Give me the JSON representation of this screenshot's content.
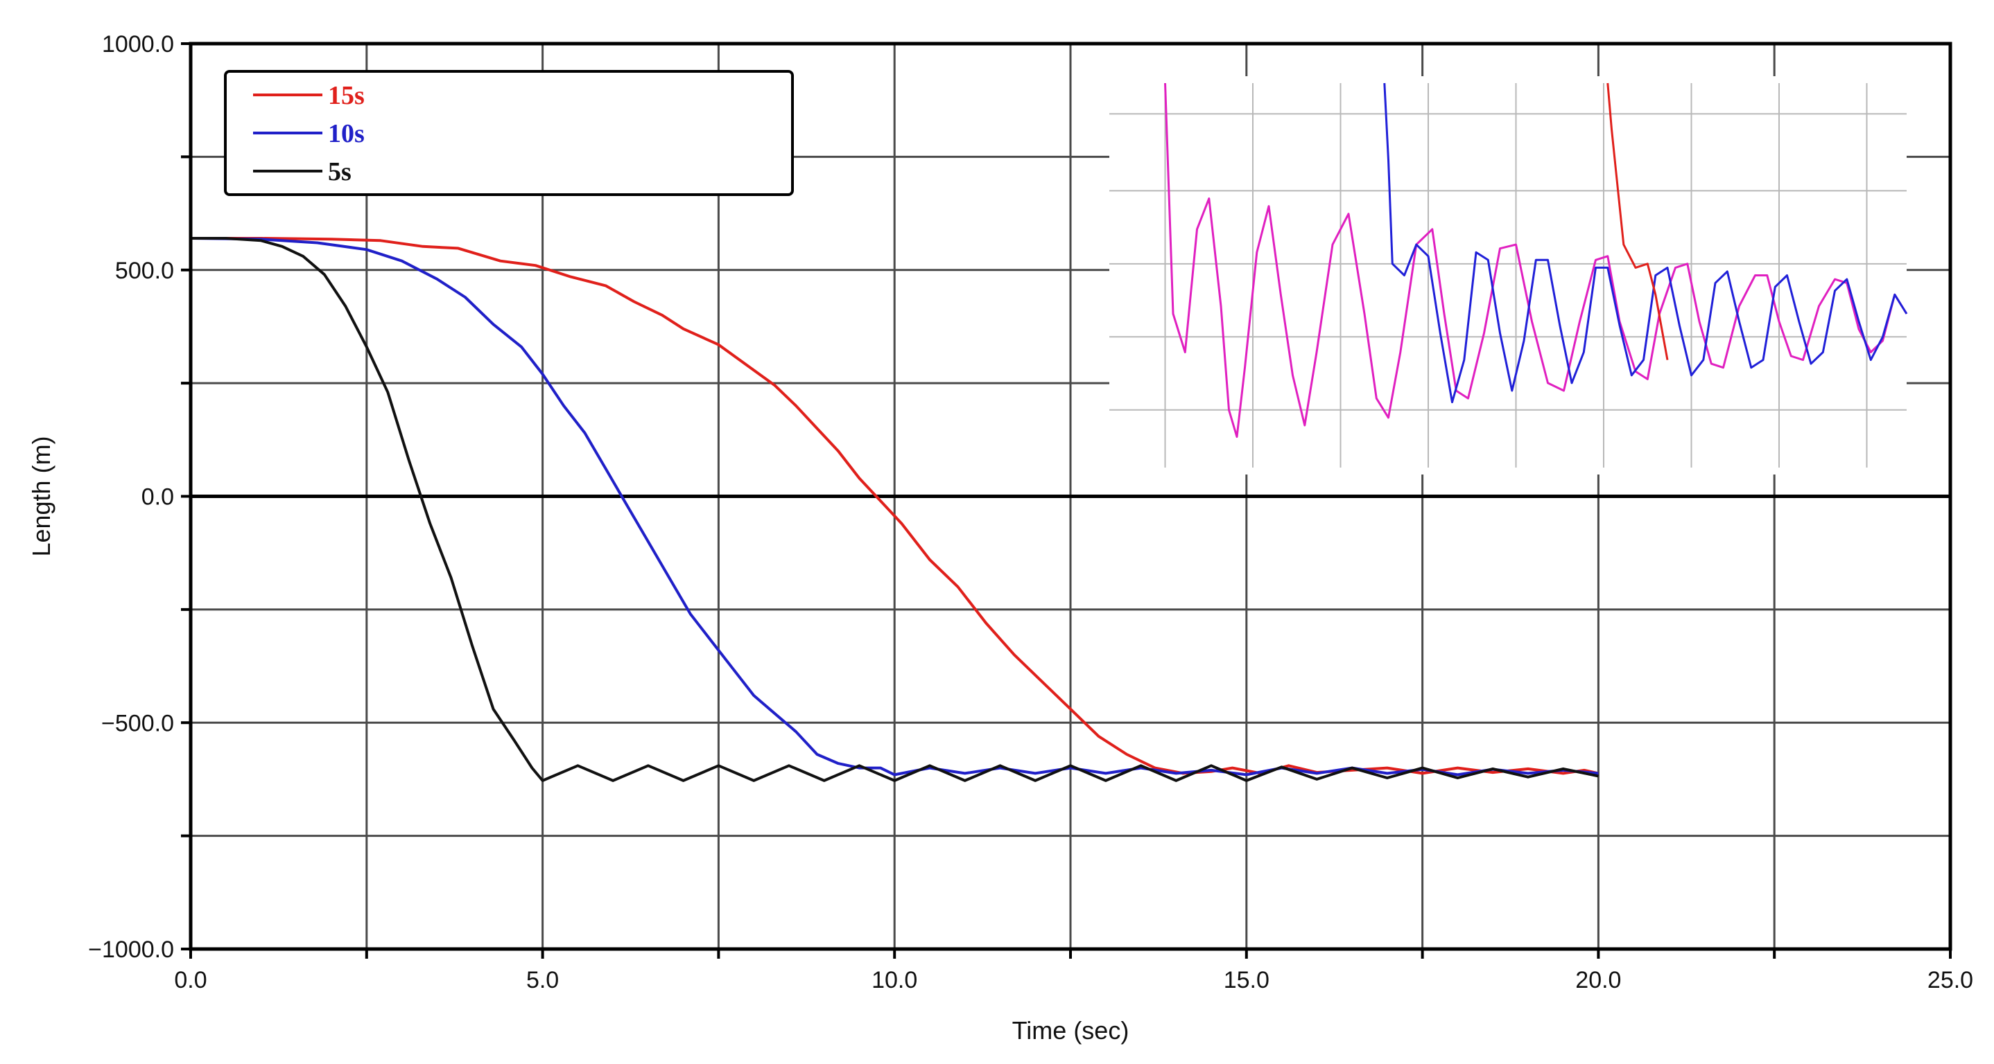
{
  "chart_data": [
    {
      "type": "line",
      "title": "",
      "xlabel": "Time (sec)",
      "ylabel": "Length (m)",
      "xlim": [
        0,
        25
      ],
      "ylim": [
        -1000,
        1000
      ],
      "x_ticks": [
        "0.0",
        "5.0",
        "10.0",
        "15.0",
        "20.0",
        "25.0"
      ],
      "y_ticks": [
        "1000.0",
        "500.0",
        "0.0",
        "−500.0",
        "−1000.0"
      ],
      "grid": true,
      "legend_position": "top-left",
      "legend": [
        "15s",
        "10s",
        "5s"
      ],
      "series": [
        {
          "name": "15s",
          "color": "#e0201b",
          "points": [
            [
              0,
              570
            ],
            [
              1,
              570
            ],
            [
              2,
              568
            ],
            [
              2.7,
              565
            ],
            [
              3.3,
              552
            ],
            [
              3.8,
              548
            ],
            [
              4.4,
              520
            ],
            [
              4.9,
              510
            ],
            [
              5.4,
              485
            ],
            [
              5.9,
              465
            ],
            [
              6.3,
              430
            ],
            [
              6.7,
              400
            ],
            [
              7.0,
              370
            ],
            [
              7.5,
              335
            ],
            [
              7.9,
              290
            ],
            [
              8.3,
              245
            ],
            [
              8.6,
              200
            ],
            [
              8.9,
              150
            ],
            [
              9.2,
              100
            ],
            [
              9.5,
              40
            ],
            [
              9.8,
              -10
            ],
            [
              10.1,
              -60
            ],
            [
              10.5,
              -140
            ],
            [
              10.9,
              -200
            ],
            [
              11.3,
              -280
            ],
            [
              11.7,
              -350
            ],
            [
              12.1,
              -410
            ],
            [
              12.5,
              -470
            ],
            [
              12.9,
              -530
            ],
            [
              13.3,
              -570
            ],
            [
              13.7,
              -600
            ],
            [
              14.1,
              -612
            ],
            [
              14.5,
              -608
            ],
            [
              14.8,
              -600
            ],
            [
              15.2,
              -612
            ],
            [
              15.6,
              -595
            ],
            [
              16.0,
              -610
            ],
            [
              16.5,
              -605
            ],
            [
              17.0,
              -600
            ],
            [
              17.5,
              -612
            ],
            [
              18.0,
              -600
            ],
            [
              18.5,
              -610
            ],
            [
              19.0,
              -602
            ],
            [
              19.5,
              -612
            ],
            [
              19.8,
              -605
            ],
            [
              20.0,
              -612
            ]
          ]
        },
        {
          "name": "10s",
          "color": "#2020c8",
          "points": [
            [
              0,
              570
            ],
            [
              1,
              568
            ],
            [
              1.8,
              560
            ],
            [
              2.5,
              545
            ],
            [
              3.0,
              520
            ],
            [
              3.5,
              480
            ],
            [
              3.9,
              440
            ],
            [
              4.3,
              380
            ],
            [
              4.7,
              330
            ],
            [
              5.0,
              270
            ],
            [
              5.3,
              200
            ],
            [
              5.6,
              140
            ],
            [
              5.9,
              60
            ],
            [
              6.2,
              -20
            ],
            [
              6.5,
              -100
            ],
            [
              6.8,
              -180
            ],
            [
              7.1,
              -260
            ],
            [
              7.4,
              -320
            ],
            [
              7.7,
              -380
            ],
            [
              8.0,
              -440
            ],
            [
              8.3,
              -480
            ],
            [
              8.6,
              -520
            ],
            [
              8.9,
              -570
            ],
            [
              9.2,
              -590
            ],
            [
              9.5,
              -600
            ],
            [
              9.8,
              -600
            ],
            [
              10.0,
              -615
            ],
            [
              10.5,
              -600
            ],
            [
              11.0,
              -612
            ],
            [
              11.5,
              -600
            ],
            [
              12.0,
              -612
            ],
            [
              12.5,
              -600
            ],
            [
              13.0,
              -612
            ],
            [
              13.5,
              -600
            ],
            [
              14.0,
              -612
            ],
            [
              14.5,
              -605
            ],
            [
              15.0,
              -615
            ],
            [
              15.5,
              -600
            ],
            [
              16.0,
              -612
            ],
            [
              16.5,
              -600
            ],
            [
              17.0,
              -612
            ],
            [
              17.5,
              -603
            ],
            [
              18.0,
              -615
            ],
            [
              18.5,
              -603
            ],
            [
              19.0,
              -612
            ],
            [
              19.5,
              -605
            ],
            [
              20.0,
              -612
            ]
          ]
        },
        {
          "name": "5s",
          "color": "#111111",
          "points": [
            [
              0,
              570
            ],
            [
              0.5,
              570
            ],
            [
              1.0,
              565
            ],
            [
              1.3,
              552
            ],
            [
              1.6,
              530
            ],
            [
              1.9,
              490
            ],
            [
              2.2,
              420
            ],
            [
              2.5,
              330
            ],
            [
              2.8,
              230
            ],
            [
              3.1,
              80
            ],
            [
              3.4,
              -60
            ],
            [
              3.7,
              -180
            ],
            [
              4.0,
              -330
            ],
            [
              4.3,
              -470
            ],
            [
              4.6,
              -540
            ],
            [
              4.85,
              -600
            ],
            [
              5.0,
              -628
            ],
            [
              5.5,
              -595
            ],
            [
              6.0,
              -628
            ],
            [
              6.5,
              -595
            ],
            [
              7.0,
              -628
            ],
            [
              7.5,
              -595
            ],
            [
              8.0,
              -628
            ],
            [
              8.5,
              -595
            ],
            [
              9.0,
              -628
            ],
            [
              9.5,
              -595
            ],
            [
              10.0,
              -628
            ],
            [
              10.5,
              -595
            ],
            [
              11.0,
              -628
            ],
            [
              11.5,
              -595
            ],
            [
              12.0,
              -628
            ],
            [
              12.5,
              -595
            ],
            [
              13.0,
              -628
            ],
            [
              13.5,
              -595
            ],
            [
              14.0,
              -628
            ],
            [
              14.5,
              -595
            ],
            [
              15.0,
              -628
            ],
            [
              15.5,
              -598
            ],
            [
              16.0,
              -625
            ],
            [
              16.5,
              -600
            ],
            [
              17.0,
              -622
            ],
            [
              17.5,
              -600
            ],
            [
              18.0,
              -622
            ],
            [
              18.5,
              -602
            ],
            [
              19.0,
              -620
            ],
            [
              19.5,
              -602
            ],
            [
              20.0,
              -618
            ]
          ]
        }
      ]
    },
    {
      "type": "line",
      "title": "",
      "note": "zoomed inset of steady-state oscillations (unlabeled axes)",
      "grid": true,
      "xlim": [
        0,
        100
      ],
      "ylim": [
        0,
        100
      ],
      "series": [
        {
          "name": "5s",
          "color": "#e020c0",
          "points": [
            [
              7,
              100
            ],
            [
              8,
              40
            ],
            [
              9.5,
              30
            ],
            [
              11,
              62
            ],
            [
              12.5,
              70
            ],
            [
              14,
              42
            ],
            [
              15,
              15
            ],
            [
              16,
              8
            ],
            [
              17,
              26
            ],
            [
              18.5,
              56
            ],
            [
              20,
              68
            ],
            [
              21.5,
              45
            ],
            [
              23,
              24
            ],
            [
              24.5,
              11
            ],
            [
              26,
              30
            ],
            [
              28,
              58
            ],
            [
              30,
              66
            ],
            [
              32,
              40
            ],
            [
              33.5,
              18
            ],
            [
              35,
              13
            ],
            [
              36.5,
              30
            ],
            [
              38.5,
              58
            ],
            [
              40.5,
              62
            ],
            [
              42,
              40
            ],
            [
              43.5,
              20
            ],
            [
              45,
              18
            ],
            [
              47,
              35
            ],
            [
              49,
              57
            ],
            [
              51,
              58
            ],
            [
              53,
              38
            ],
            [
              55,
              22
            ],
            [
              57,
              20
            ],
            [
              59,
              38
            ],
            [
              61,
              54
            ],
            [
              62.5,
              55
            ],
            [
              64,
              38
            ],
            [
              66,
              25
            ],
            [
              67.5,
              23
            ],
            [
              69,
              40
            ],
            [
              71,
              52
            ],
            [
              72.5,
              53
            ],
            [
              74,
              38
            ],
            [
              75.5,
              27
            ],
            [
              77,
              26
            ],
            [
              79,
              42
            ],
            [
              81,
              50
            ],
            [
              82.5,
              50
            ],
            [
              84,
              38
            ],
            [
              85.5,
              29
            ],
            [
              87,
              28
            ],
            [
              89,
              42
            ],
            [
              91,
              49
            ],
            [
              92.5,
              48
            ],
            [
              94,
              36
            ],
            [
              95.5,
              30
            ],
            [
              97,
              33
            ],
            [
              98.5,
              45
            ],
            [
              100,
              40
            ]
          ]
        },
        {
          "name": "10s",
          "color": "#2020d8",
          "points": [
            [
              34.5,
              100
            ],
            [
              35,
              80
            ],
            [
              35.5,
              53
            ],
            [
              37,
              50
            ],
            [
              38.5,
              58
            ],
            [
              40,
              55
            ],
            [
              41.5,
              35
            ],
            [
              43,
              17
            ],
            [
              44.5,
              28
            ],
            [
              46,
              56
            ],
            [
              47.5,
              54
            ],
            [
              49,
              35
            ],
            [
              50.5,
              20
            ],
            [
              52,
              33
            ],
            [
              53.5,
              54
            ],
            [
              55,
              54
            ],
            [
              56.5,
              37
            ],
            [
              58,
              22
            ],
            [
              59.5,
              30
            ],
            [
              61,
              52
            ],
            [
              62.5,
              52
            ],
            [
              64,
              37
            ],
            [
              65.5,
              24
            ],
            [
              67,
              28
            ],
            [
              68.5,
              50
            ],
            [
              70,
              52
            ],
            [
              71.5,
              37
            ],
            [
              73,
              24
            ],
            [
              74.5,
              28
            ],
            [
              76,
              48
            ],
            [
              77.5,
              51
            ],
            [
              79,
              38
            ],
            [
              80.5,
              26
            ],
            [
              82,
              28
            ],
            [
              83.5,
              47
            ],
            [
              85,
              50
            ],
            [
              86.5,
              38
            ],
            [
              88,
              27
            ],
            [
              89.5,
              30
            ],
            [
              91,
              46
            ],
            [
              92.5,
              49
            ],
            [
              94,
              38
            ],
            [
              95.5,
              28
            ],
            [
              97,
              34
            ],
            [
              98.5,
              45
            ],
            [
              100,
              40
            ]
          ]
        },
        {
          "name": "15s",
          "color": "#e0201b",
          "points": [
            [
              62.5,
              100
            ],
            [
              63,
              88
            ],
            [
              63.8,
              72
            ],
            [
              64.5,
              58
            ],
            [
              66,
              52
            ],
            [
              67.5,
              53
            ],
            [
              68.5,
              45
            ],
            [
              70,
              28
            ]
          ]
        }
      ]
    }
  ]
}
